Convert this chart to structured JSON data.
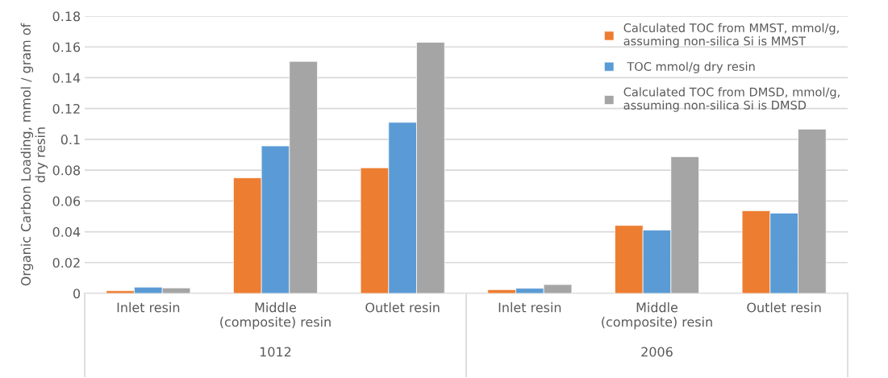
{
  "chart_data": {
    "type": "bar",
    "ylabel": "Organic Carbon Loading, mmol / gram of\ndry resin",
    "categories": [
      "Inlet resin",
      "Middle\n(composite) resin",
      "Outlet resin",
      "Inlet resin",
      "Middle\n(composite) resin",
      "Outlet resin"
    ],
    "annotations": [
      "1012",
      "2006"
    ],
    "series": [
      {
        "name": "Calculated TOC from MMST, mmol/g,\nassuming non-silica Si is MMST",
        "color": "#ed7d31",
        "values": [
          0.0017,
          0.075,
          0.0815,
          0.0024,
          0.0441,
          0.0536
        ]
      },
      {
        "name": " TOC mmol/g dry resin",
        "color": "#5b9bd5",
        "values": [
          0.004,
          0.0957,
          0.111,
          0.0033,
          0.0411,
          0.0521
        ]
      },
      {
        "name": "Calculated TOC from DMSD, mmol/g,\nassuming non-silica Si is DMSD",
        "color": "#a5a5a5",
        "values": [
          0.0035,
          0.1506,
          0.163,
          0.0057,
          0.0887,
          0.1066
        ]
      }
    ],
    "ylim": [
      0,
      0.18
    ],
    "yticks": [
      0,
      {
        "value": 0.02,
        "label": "0.02"
      },
      {
        "value": 0.04,
        "label": "0.04"
      },
      {
        "value": 0.06,
        "label": "0.06"
      },
      {
        "value": 0.08,
        "label": "0.08"
      },
      {
        "value": 0.1,
        "label": "0.1"
      },
      {
        "value": 0.12,
        "label": "0.12"
      },
      {
        "value": 0.14,
        "label": "0.14"
      },
      {
        "value": 0.16,
        "label": "0.16"
      },
      {
        "value": 0.18,
        "label": "0.18"
      }
    ],
    "grid": "y",
    "legend": "top right"
  }
}
